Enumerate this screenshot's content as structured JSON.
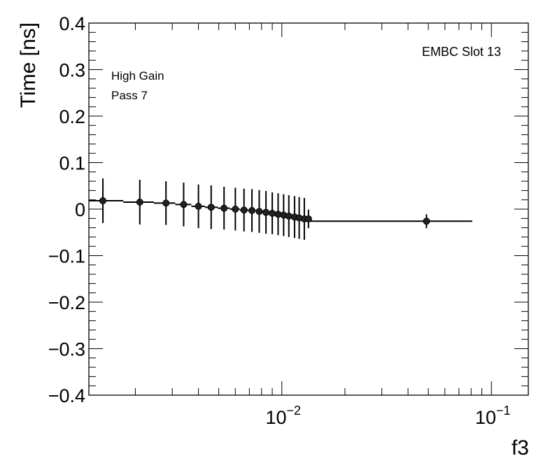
{
  "chart_data": {
    "type": "scatter",
    "title": "",
    "xlabel": "f3",
    "ylabel": "Time [ns]",
    "x_scale": "log",
    "xlim": [
      0.0012,
      0.15
    ],
    "ylim": [
      -0.4,
      0.4
    ],
    "y_ticks": [
      {
        "value": 0.4,
        "label": "0.4"
      },
      {
        "value": 0.3,
        "label": "0.3"
      },
      {
        "value": 0.2,
        "label": "0.2"
      },
      {
        "value": 0.1,
        "label": "0.1"
      },
      {
        "value": 0.0,
        "label": "0"
      },
      {
        "value": -0.1,
        "label": "−0.1"
      },
      {
        "value": -0.2,
        "label": "−0.2"
      },
      {
        "value": -0.3,
        "label": "−0.3"
      },
      {
        "value": -0.4,
        "label": "−0.4"
      }
    ],
    "x_ticks": [
      {
        "value": 0.01,
        "base": "10",
        "exp": "−2"
      },
      {
        "value": 0.1,
        "base": "10",
        "exp": "−1"
      }
    ],
    "annotations": {
      "top_left": [
        "High Gain",
        "Pass 7"
      ],
      "top_right": "EMBC Slot 13"
    },
    "grid": false,
    "series": [
      {
        "points": [
          {
            "x": 0.0014,
            "y": 0.018,
            "yerr": 0.048
          },
          {
            "x": 0.0021,
            "y": 0.015,
            "yerr": 0.048
          },
          {
            "x": 0.0028,
            "y": 0.013,
            "yerr": 0.047
          },
          {
            "x": 0.0034,
            "y": 0.01,
            "yerr": 0.047
          },
          {
            "x": 0.004,
            "y": 0.006,
            "yerr": 0.047
          },
          {
            "x": 0.0046,
            "y": 0.004,
            "yerr": 0.047
          },
          {
            "x": 0.0053,
            "y": 0.002,
            "yerr": 0.046
          },
          {
            "x": 0.006,
            "y": 0.0,
            "yerr": 0.046
          },
          {
            "x": 0.0066,
            "y": -0.002,
            "yerr": 0.046
          },
          {
            "x": 0.0072,
            "y": -0.003,
            "yerr": 0.046
          },
          {
            "x": 0.0078,
            "y": -0.005,
            "yerr": 0.046
          },
          {
            "x": 0.0084,
            "y": -0.007,
            "yerr": 0.046
          },
          {
            "x": 0.009,
            "y": -0.009,
            "yerr": 0.045
          },
          {
            "x": 0.0096,
            "y": -0.011,
            "yerr": 0.045
          },
          {
            "x": 0.0102,
            "y": -0.013,
            "yerr": 0.045
          },
          {
            "x": 0.0108,
            "y": -0.015,
            "yerr": 0.045
          },
          {
            "x": 0.0115,
            "y": -0.017,
            "yerr": 0.045
          },
          {
            "x": 0.0121,
            "y": -0.019,
            "yerr": 0.045
          },
          {
            "x": 0.0128,
            "y": -0.021,
            "yerr": 0.045
          },
          {
            "x": 0.0134,
            "y": -0.021,
            "yerr": 0.02
          },
          {
            "x": 0.049,
            "y": -0.026,
            "yerr": 0.015
          }
        ],
        "step_line": [
          {
            "x0": 0.0012,
            "x1": 0.00175,
            "y": 0.018
          },
          {
            "x0": 0.00175,
            "x1": 0.00245,
            "y": 0.015
          },
          {
            "x0": 0.00245,
            "x1": 0.0031,
            "y": 0.013
          },
          {
            "x0": 0.0031,
            "x1": 0.0037,
            "y": 0.01
          },
          {
            "x0": 0.0037,
            "x1": 0.0043,
            "y": 0.006
          },
          {
            "x0": 0.0043,
            "x1": 0.00495,
            "y": 0.004
          },
          {
            "x0": 0.00495,
            "x1": 0.00565,
            "y": 0.002
          },
          {
            "x0": 0.00565,
            "x1": 0.0063,
            "y": 0.0
          },
          {
            "x0": 0.0063,
            "x1": 0.0069,
            "y": -0.002
          },
          {
            "x0": 0.0069,
            "x1": 0.0075,
            "y": -0.003
          },
          {
            "x0": 0.0075,
            "x1": 0.0081,
            "y": -0.005
          },
          {
            "x0": 0.0081,
            "x1": 0.0087,
            "y": -0.007
          },
          {
            "x0": 0.0087,
            "x1": 0.0093,
            "y": -0.009
          },
          {
            "x0": 0.0093,
            "x1": 0.0099,
            "y": -0.011
          },
          {
            "x0": 0.0099,
            "x1": 0.0105,
            "y": -0.013
          },
          {
            "x0": 0.0105,
            "x1": 0.01115,
            "y": -0.015
          },
          {
            "x0": 0.01115,
            "x1": 0.0118,
            "y": -0.017
          },
          {
            "x0": 0.0118,
            "x1": 0.01245,
            "y": -0.019
          },
          {
            "x0": 0.01245,
            "x1": 0.0131,
            "y": -0.021
          },
          {
            "x0": 0.0131,
            "x1": 0.0137,
            "y": -0.021
          },
          {
            "x0": 0.0137,
            "x1": 0.081,
            "y": -0.026
          }
        ]
      }
    ]
  }
}
